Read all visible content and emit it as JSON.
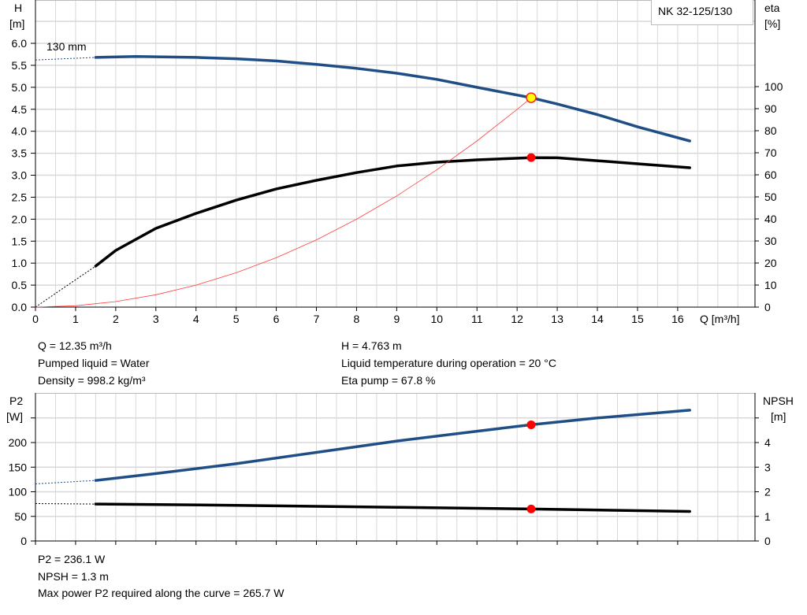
{
  "chart_data": [
    {
      "type": "line",
      "model_label": "NK 32-125/130",
      "curve_label": "130 mm",
      "xlabel": "Q [m³/h]",
      "ylabel_left": [
        "H",
        "[m]"
      ],
      "ylabel_right": [
        "eta",
        "[%]"
      ],
      "xlim": [
        0,
        17.5
      ],
      "ylim_left": [
        0,
        6.2
      ],
      "ylim_right": [
        0,
        100
      ],
      "x_ticks": [
        0,
        1,
        2,
        3,
        4,
        5,
        6,
        7,
        8,
        9,
        10,
        11,
        12,
        13,
        14,
        15,
        16
      ],
      "y_ticks_left": [
        "0.0",
        "0.5",
        "1.0",
        "1.5",
        "2.0",
        "2.5",
        "3.0",
        "3.5",
        "4.0",
        "4.5",
        "5.0",
        "5.5",
        "6.0"
      ],
      "y_ticks_right": [
        0,
        10,
        20,
        30,
        40,
        50,
        60,
        70,
        80,
        90,
        100
      ],
      "grid": true,
      "series": [
        {
          "key": "H",
          "axis": "left",
          "color": "#1f4e87",
          "x": [
            1.5,
            2.5,
            4,
            5,
            6,
            7,
            8,
            9,
            10,
            11,
            12.35,
            13,
            14,
            15,
            16.3
          ],
          "y": [
            5.68,
            5.7,
            5.68,
            5.65,
            5.6,
            5.52,
            5.43,
            5.32,
            5.18,
            5.0,
            4.763,
            4.62,
            4.38,
            4.1,
            3.78
          ],
          "extrapolated": {
            "x": [
              0,
              1.5
            ],
            "y": [
              5.62,
              5.68
            ]
          }
        },
        {
          "key": "eta",
          "axis": "right",
          "color": "#000000",
          "x": [
            1.5,
            2,
            3,
            4,
            5,
            6,
            7,
            8,
            9,
            10,
            11,
            12.35,
            13,
            14,
            15,
            16.3
          ],
          "y": [
            18.6,
            25.7,
            35.7,
            42.5,
            48.5,
            53.6,
            57.5,
            61,
            64,
            65.7,
            66.8,
            67.8,
            67.7,
            66.4,
            65,
            63.2
          ],
          "extrapolated": {
            "x": [
              0,
              1.5
            ],
            "y": [
              0,
              18.6
            ]
          }
        },
        {
          "key": "system",
          "axis": "left",
          "color": "#ff4040",
          "x": [
            0,
            1,
            2,
            3,
            4,
            5,
            6,
            7,
            8,
            9,
            10,
            11,
            12,
            12.35
          ],
          "y": [
            0,
            0.031,
            0.125,
            0.281,
            0.5,
            0.781,
            1.124,
            1.53,
            1.999,
            2.53,
            3.123,
            3.779,
            4.497,
            4.763
          ]
        }
      ],
      "operating_point": {
        "Q": 12.35,
        "H": 4.763,
        "eta": 67.8
      }
    },
    {
      "type": "line",
      "ylabel_left": [
        "P2",
        "[W]"
      ],
      "ylabel_right": [
        "NPSH",
        "[m]"
      ],
      "xlim": [
        0,
        17.5
      ],
      "ylim_left": [
        0,
        300
      ],
      "ylim_right": [
        0,
        6
      ],
      "y_ticks_left": [
        0,
        50,
        100,
        150,
        200
      ],
      "y_ticks_right": [
        0,
        1,
        2,
        3,
        4
      ],
      "grid": true,
      "series": [
        {
          "key": "P2",
          "axis": "left",
          "color": "#1f4e87",
          "x": [
            1.5,
            3,
            5,
            7,
            9,
            11,
            12.35,
            14,
            16.3
          ],
          "y": [
            123,
            137,
            157,
            180,
            203,
            223,
            236.1,
            250,
            265.7
          ],
          "extrapolated": {
            "x": [
              0,
              1.5
            ],
            "y": [
              116,
              123
            ]
          }
        },
        {
          "key": "NPSH",
          "axis": "right",
          "color": "#000000",
          "x": [
            1.5,
            5,
            9,
            12.35,
            16.3
          ],
          "y": [
            1.5,
            1.45,
            1.37,
            1.3,
            1.2
          ],
          "extrapolated": {
            "x": [
              0,
              1.5
            ],
            "y": [
              1.52,
              1.5
            ]
          }
        }
      ],
      "operating_point": {
        "Q": 12.35,
        "P2": 236.1,
        "NPSH": 1.3
      }
    }
  ],
  "info_top": {
    "q": "Q = 12.35 m³/h",
    "liquid": "Pumped liquid = Water",
    "density": "Density = 998.2 kg/m³",
    "h": "H = 4.763 m",
    "temp": "Liquid temperature during operation = 20 °C",
    "eta": "Eta pump = 67.8 %"
  },
  "info_bottom": {
    "p2": "P2 = 236.1 W",
    "npsh": "NPSH = 1.3 m",
    "max_power": "Max power P2 required along the curve = 265.7 W"
  }
}
